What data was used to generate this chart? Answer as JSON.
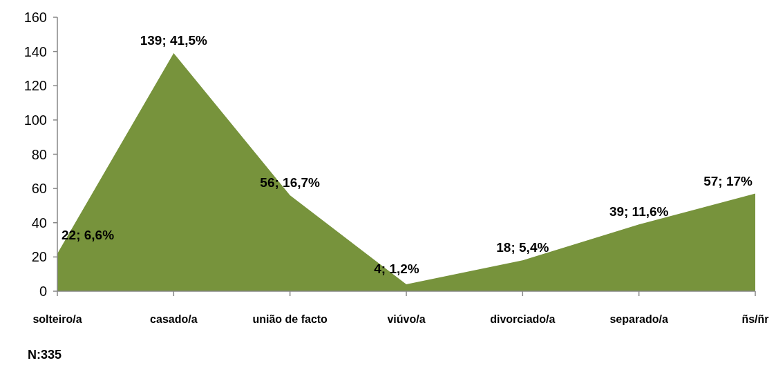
{
  "chart_data": {
    "type": "area",
    "categories": [
      "solteiro/a",
      "casado/a",
      "união de facto",
      "viúvo/a",
      "divorciado/a",
      "separado/a",
      "ñs/ñr"
    ],
    "values": [
      22,
      139,
      56,
      4,
      18,
      39,
      57
    ],
    "value_labels": [
      "22; 6,6%",
      "139; 41,5%",
      "56; 16,7%",
      "4; 1,2%",
      "18; 5,4%",
      "39; 11,6%",
      "57; 17%"
    ],
    "color": "#77933c",
    "ylim": [
      0,
      160
    ],
    "yticks": [
      0,
      20,
      40,
      60,
      80,
      100,
      120,
      140,
      160
    ],
    "grid": false,
    "annotations": [
      "N:335"
    ]
  }
}
